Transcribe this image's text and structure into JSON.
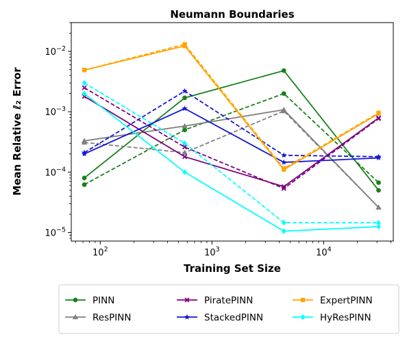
{
  "chart_data": {
    "type": "line",
    "title": "Neumann Boundaries",
    "xlabel": "Training Set Size",
    "ylabel": "Mean Relative ℓ₂ Error",
    "x_scale": "log",
    "y_scale": "log",
    "xlim": [
      55,
      42000
    ],
    "ylim": [
      7.2e-06,
      0.03
    ],
    "x_ticks": [
      {
        "value": 100,
        "base": "10",
        "exp": "2"
      },
      {
        "value": 1000,
        "base": "10",
        "exp": "3"
      },
      {
        "value": 10000,
        "base": "10",
        "exp": "4"
      }
    ],
    "y_ticks": [
      {
        "value": 1e-05,
        "base": "10",
        "exp": "−5"
      },
      {
        "value": 0.0001,
        "base": "10",
        "exp": "−4"
      },
      {
        "value": 0.001,
        "base": "10",
        "exp": "−3"
      },
      {
        "value": 0.01,
        "base": "10",
        "exp": "−2"
      }
    ],
    "x": [
      72,
      570,
      4400,
      31000
    ],
    "legend_position": "below-center",
    "series": [
      {
        "name": "PINN",
        "color": "#1a7f1a",
        "marker": "circle",
        "solid": [
          8e-05,
          0.0017,
          0.0048,
          5e-05
        ],
        "dashed": [
          6.2e-05,
          0.0005,
          0.002,
          6.7e-05
        ]
      },
      {
        "name": "ResPINN",
        "color": "#808080",
        "marker": "triangle",
        "solid": [
          0.00033,
          0.00058,
          0.00108,
          2.6e-05
        ],
        "dashed": [
          0.00031,
          0.00021,
          0.00103,
          2.6e-05
        ]
      },
      {
        "name": "PiratePINN",
        "color": "#800080",
        "marker": "x",
        "solid": [
          0.0018,
          0.00018,
          5.75e-05,
          0.00079
        ],
        "dashed": [
          0.0025,
          0.00026,
          5.35e-05,
          0.00077
        ]
      },
      {
        "name": "StackedPINN",
        "color": "#1515d8",
        "marker": "star",
        "solid": [
          0.0002,
          0.00113,
          0.000145,
          0.000172
        ],
        "dashed": [
          0.00021,
          0.0022,
          0.00019,
          0.00018
        ]
      },
      {
        "name": "ExpertPINN",
        "color": "#ffa500",
        "marker": "square",
        "solid": [
          0.0049,
          0.0123,
          0.00011,
          0.00093
        ],
        "dashed": [
          0.0049,
          0.0131,
          0.000115,
          0.00096
        ]
      },
      {
        "name": "HyResPINN",
        "color": "#00ffff",
        "marker": "diamond",
        "solid": [
          0.002,
          0.0001,
          1.05e-05,
          1.25e-05
        ],
        "dashed": [
          0.003,
          0.0003,
          1.45e-05,
          1.45e-05
        ]
      }
    ]
  }
}
